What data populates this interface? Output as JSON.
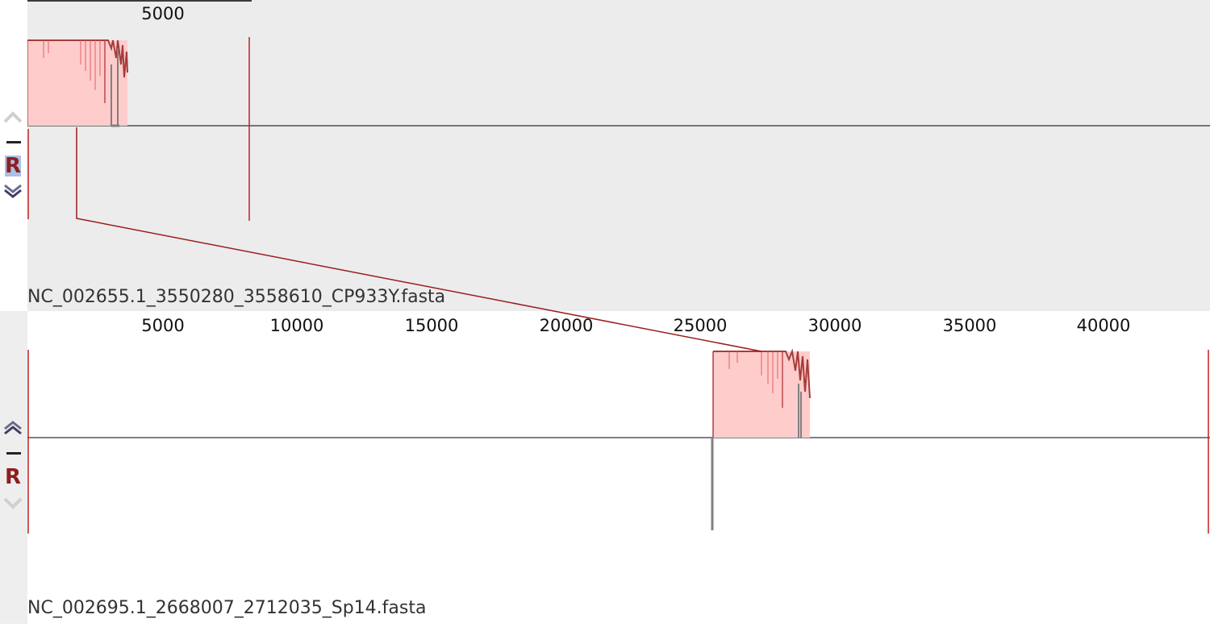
{
  "colors": {
    "block_fill": "#ffcccc",
    "block_edge": "#a83b3b",
    "block_accent": "#e06060",
    "match_line": "#9b1c1c",
    "gap_gray": "#808080",
    "top_track_bg": "#ececec",
    "bottom_track_bg": "#ffffff",
    "r_button_color": "#8e1f1f",
    "r_button_selected_bg": "#aac0e4"
  },
  "top_panel": {
    "sequence_name": "NC_002655.1_3550280_3558610_CP933Y.fasta",
    "ruler_ticks": [
      "5000"
    ],
    "controls": {
      "up_icon": "chevron-up-icon",
      "minus_icon": "minus-icon",
      "reverse_label": "R",
      "down_icon": "chevron-down-icon"
    }
  },
  "bottom_panel": {
    "sequence_name": "NC_002695.1_2668007_2712035_Sp14.fasta",
    "ruler_ticks": [
      "5000",
      "10000",
      "15000",
      "20000",
      "25000",
      "30000",
      "35000",
      "40000"
    ],
    "controls": {
      "up_icon": "chevron-up-icon",
      "minus_icon": "minus-icon",
      "reverse_label": "R",
      "down_icon": "chevron-down-icon"
    }
  }
}
